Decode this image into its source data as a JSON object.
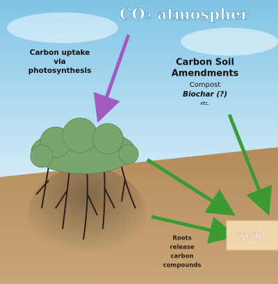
{
  "header": {
    "title": "CO₂ atmospher"
  },
  "uptake": {
    "lines": [
      "Carbon uptake",
      "via",
      "photosynthesis"
    ]
  },
  "amendments": {
    "title_lines": [
      "Carbon Soil",
      "Amendments"
    ],
    "items": [
      "Compost",
      "Biochar (?)",
      "etc."
    ]
  },
  "roots": {
    "lines": [
      "Roots",
      "release",
      "carbon",
      "compounds"
    ]
  },
  "soil_box": {
    "label": "carb"
  }
}
